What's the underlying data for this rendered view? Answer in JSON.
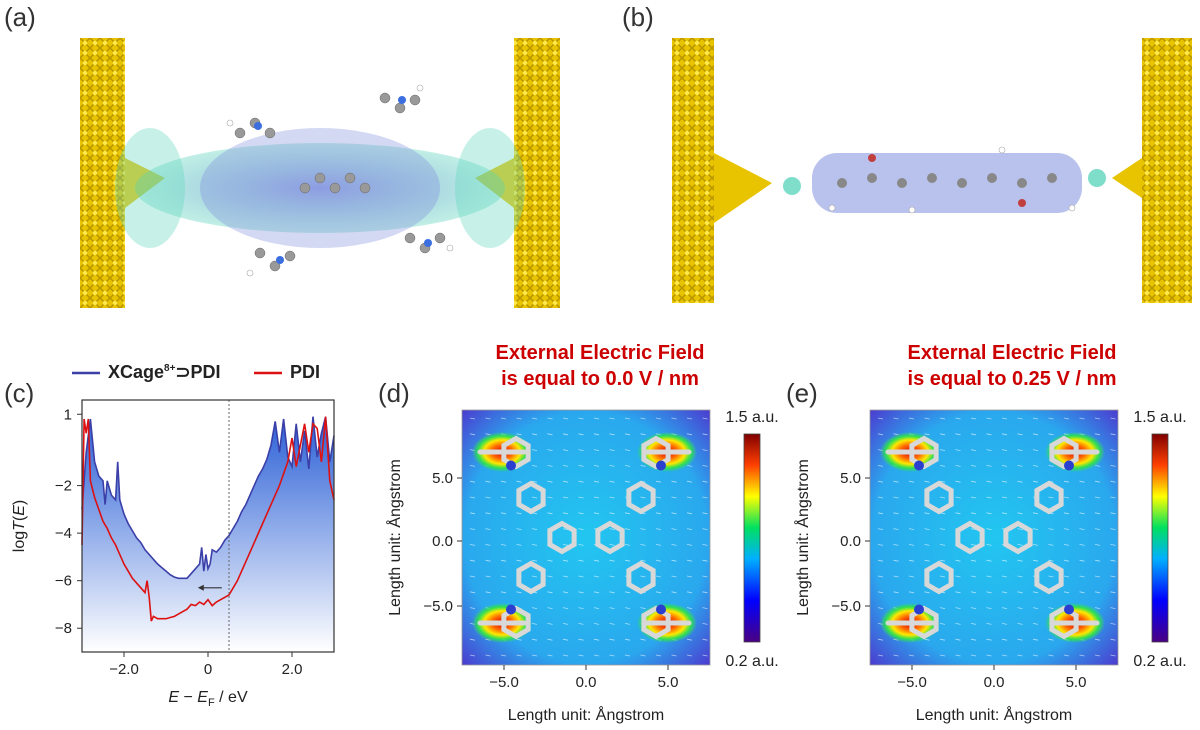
{
  "panels": {
    "a": {
      "label": "(a)"
    },
    "b": {
      "label": "(b)"
    },
    "c": {
      "label": "(c)"
    },
    "d": {
      "label": "(d)",
      "field_line1": "External Electric Field",
      "field_line2": "is equal to 0.0 V / nm"
    },
    "e": {
      "label": "(e)",
      "field_line1": "External Electric Field",
      "field_line2": "is equal to 0.25 V / nm"
    }
  },
  "colorbar": {
    "max_label": "1.5 a.u.",
    "min_label": "0.2 a.u."
  },
  "map_axes": {
    "xlabel": "Length unit: Ångstrom",
    "ylabel": "Length unit: Ångstrom",
    "xticks": [
      "−5.0",
      "0.0",
      "5.0"
    ],
    "yticks": [
      "5.0",
      "0.0",
      "−5.0"
    ]
  },
  "chart_data": {
    "type": "line",
    "xlabel": "E − E_F / eV",
    "ylabel": "log T(E)",
    "xlim": [
      -3,
      3
    ],
    "ylim": [
      -9,
      1.6
    ],
    "xticks": [
      "−2.0",
      "0",
      "2.0"
    ],
    "xtick_values": [
      -2,
      0,
      2
    ],
    "yticks": [
      "1",
      "−2",
      "−4",
      "−6",
      "−8"
    ],
    "ytick_values": [
      1,
      -2,
      -4,
      -6,
      -8
    ],
    "fermi_reference": 0.5,
    "series": [
      {
        "name": "XCage8+⊃PDI",
        "color": "#3b3fa8",
        "x": [
          -3.0,
          -2.9,
          -2.8,
          -2.7,
          -2.6,
          -2.5,
          -2.45,
          -2.4,
          -2.3,
          -2.2,
          -2.15,
          -2.1,
          -2.0,
          -1.9,
          -1.8,
          -1.7,
          -1.6,
          -1.5,
          -1.4,
          -1.3,
          -1.2,
          -1.1,
          -1.0,
          -0.9,
          -0.8,
          -0.7,
          -0.6,
          -0.5,
          -0.4,
          -0.3,
          -0.2,
          -0.15,
          -0.1,
          -0.05,
          0.0,
          0.05,
          0.1,
          0.2,
          0.3,
          0.4,
          0.5,
          0.6,
          0.7,
          0.8,
          0.9,
          1.0,
          1.1,
          1.2,
          1.3,
          1.4,
          1.5,
          1.6,
          1.7,
          1.8,
          1.9,
          2.0,
          2.1,
          2.2,
          2.3,
          2.4,
          2.5,
          2.6,
          2.7,
          2.8,
          2.9,
          3.0
        ],
        "y": [
          -3.0,
          -0.6,
          0.8,
          -1.0,
          -1.6,
          -1.8,
          -2.8,
          -1.8,
          -2.4,
          -2.6,
          -1.0,
          -2.6,
          -3.2,
          -3.6,
          -3.9,
          -4.2,
          -4.4,
          -4.7,
          -4.9,
          -5.1,
          -5.3,
          -5.45,
          -5.6,
          -5.75,
          -5.85,
          -5.9,
          -5.9,
          -5.9,
          -5.7,
          -5.5,
          -5.3,
          -4.6,
          -5.6,
          -4.9,
          -5.5,
          -5.3,
          -4.7,
          -4.8,
          -4.6,
          -4.3,
          -4.1,
          -3.8,
          -3.5,
          -3.1,
          -2.8,
          -2.4,
          -2.0,
          -1.6,
          -1.3,
          -0.9,
          -0.3,
          0.7,
          -0.6,
          0.8,
          -0.8,
          -1.2,
          0.6,
          -1.0,
          0.3,
          -1.3,
          0.9,
          -0.8,
          0.2,
          0.9,
          -1.0,
          0.1
        ]
      },
      {
        "name": "PDI",
        "color": "#dd1111",
        "x": [
          -3.0,
          -2.95,
          -2.9,
          -2.85,
          -2.8,
          -2.7,
          -2.6,
          -2.5,
          -2.4,
          -2.3,
          -2.2,
          -2.1,
          -2.0,
          -1.9,
          -1.8,
          -1.7,
          -1.6,
          -1.5,
          -1.45,
          -1.4,
          -1.35,
          -1.3,
          -1.2,
          -1.1,
          -1.0,
          -0.9,
          -0.8,
          -0.7,
          -0.6,
          -0.5,
          -0.4,
          -0.3,
          -0.2,
          -0.1,
          0.0,
          0.1,
          0.2,
          0.3,
          0.4,
          0.5,
          0.6,
          0.7,
          0.8,
          0.9,
          1.0,
          1.1,
          1.2,
          1.3,
          1.4,
          1.5,
          1.6,
          1.7,
          1.8,
          1.9,
          2.0,
          2.1,
          2.2,
          2.3,
          2.4,
          2.5,
          2.6,
          2.7,
          2.8,
          2.9,
          3.0
        ],
        "y": [
          -4.5,
          0.8,
          0.2,
          0.8,
          -1.8,
          -2.5,
          -3.0,
          -3.5,
          -3.8,
          -4.2,
          -4.5,
          -4.9,
          -5.3,
          -5.6,
          -5.9,
          -6.1,
          -6.3,
          -6.5,
          -6.0,
          -6.7,
          -7.7,
          -7.5,
          -7.6,
          -7.6,
          -7.6,
          -7.55,
          -7.5,
          -7.4,
          -7.3,
          -7.2,
          -7.0,
          -7.05,
          -6.9,
          -7.0,
          -6.8,
          -7.05,
          -6.9,
          -6.8,
          -6.7,
          -6.6,
          -6.3,
          -6.0,
          -5.6,
          -5.2,
          -4.8,
          -4.4,
          -4.0,
          -3.6,
          -3.2,
          -2.8,
          -2.4,
          -2.0,
          -1.5,
          -1.0,
          0.0,
          -1.2,
          -0.3,
          0.6,
          -0.6,
          0.6,
          0.4,
          -1.0,
          0.9,
          -1.8,
          -2.6
        ]
      }
    ],
    "annotation": "arrow from XCage8+⊃PDI curve pointing left near E − E_F ≈ −0.1 eV"
  }
}
